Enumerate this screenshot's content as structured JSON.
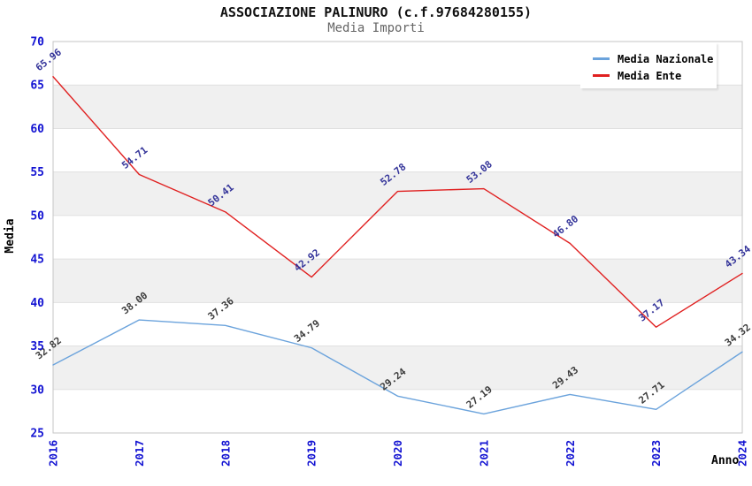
{
  "chart_data": {
    "type": "line",
    "title": "ASSOCIAZIONE PALINURO (c.f.97684280155)",
    "subtitle": "Media Importi",
    "xlabel": "Anno",
    "ylabel": "Media",
    "x": [
      "2016",
      "2017",
      "2018",
      "2019",
      "2020",
      "2021",
      "2022",
      "2023",
      "2024"
    ],
    "series": [
      {
        "name": "Media Nazionale",
        "color": "#6ba3dc",
        "label_color": "#3c3c3c",
        "values": [
          32.82,
          38.0,
          37.36,
          34.79,
          29.24,
          27.19,
          29.43,
          27.71,
          34.32
        ]
      },
      {
        "name": "Media Ente",
        "color": "#e02020",
        "label_color": "#333399",
        "values": [
          65.96,
          54.71,
          50.41,
          42.92,
          52.78,
          53.08,
          46.8,
          37.17,
          43.34
        ]
      }
    ],
    "ylim": [
      25,
      70
    ],
    "ytick_step": 5,
    "yticks": [
      25,
      30,
      35,
      40,
      45,
      50,
      55,
      60,
      65,
      70
    ],
    "grid": true,
    "bands": "alternating-5",
    "band_color": "#f0f0f0",
    "gridline_color": "#e0e0e0",
    "border_color": "#c6c6c6",
    "tick_label_color": "#1313d2",
    "legend_position": "top-right",
    "value_label_decimals": 2
  }
}
